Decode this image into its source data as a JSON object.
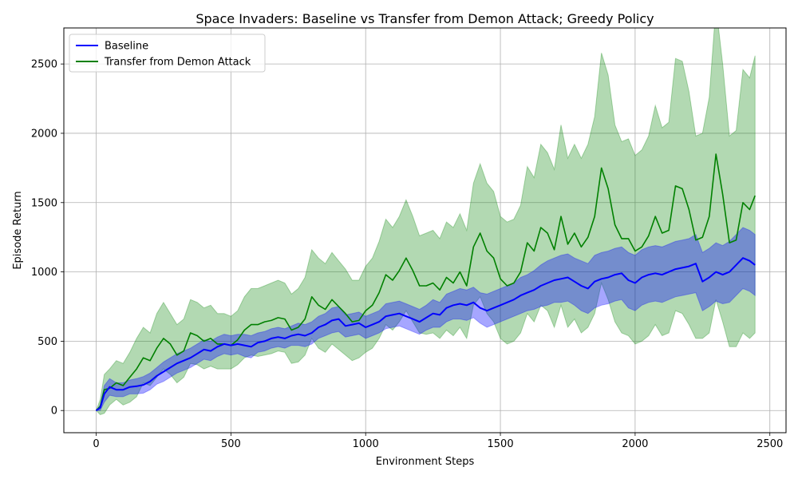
{
  "chart_data": {
    "type": "line",
    "title": "Space Invaders: Baseline vs Transfer from Demon Attack; Greedy Policy",
    "xlabel": "Environment Steps",
    "ylabel": "Episode Return",
    "xlim": [
      -120,
      2560
    ],
    "ylim": [
      -160,
      2760
    ],
    "xticks": [
      0,
      500,
      1000,
      1500,
      2000,
      2500
    ],
    "xtick_labels": [
      "0",
      "500",
      "1000",
      "1500",
      "2000",
      "2500"
    ],
    "yticks": [
      0,
      500,
      1000,
      1500,
      2000,
      2500
    ],
    "ytick_labels": [
      "0",
      "500",
      "1000",
      "1500",
      "2000",
      "2500"
    ],
    "grid": true,
    "legend_position": "top-left",
    "series": [
      {
        "name": "Baseline",
        "color": "#0000ff",
        "band_color": "#0000ff",
        "x": [
          0,
          15,
          30,
          50,
          75,
          100,
          125,
          150,
          175,
          200,
          225,
          250,
          275,
          300,
          325,
          350,
          375,
          400,
          425,
          450,
          475,
          500,
          525,
          550,
          575,
          600,
          625,
          650,
          675,
          700,
          725,
          750,
          775,
          800,
          825,
          850,
          875,
          900,
          925,
          950,
          975,
          1000,
          1025,
          1050,
          1075,
          1100,
          1125,
          1150,
          1175,
          1200,
          1225,
          1250,
          1275,
          1300,
          1325,
          1350,
          1375,
          1400,
          1425,
          1450,
          1475,
          1500,
          1525,
          1550,
          1575,
          1600,
          1625,
          1650,
          1675,
          1700,
          1725,
          1750,
          1775,
          1800,
          1825,
          1850,
          1875,
          1900,
          1925,
          1950,
          1975,
          2000,
          2025,
          2050,
          2075,
          2100,
          2125,
          2150,
          2175,
          2200,
          2225,
          2250,
          2275,
          2300,
          2325,
          2350,
          2375,
          2400,
          2425,
          2445
        ],
        "y": [
          0,
          20,
          120,
          170,
          150,
          150,
          170,
          175,
          185,
          210,
          250,
          280,
          310,
          340,
          360,
          380,
          410,
          440,
          430,
          460,
          480,
          470,
          480,
          470,
          460,
          490,
          500,
          520,
          530,
          520,
          540,
          550,
          540,
          560,
          600,
          620,
          650,
          660,
          610,
          620,
          630,
          600,
          620,
          640,
          680,
          690,
          700,
          680,
          660,
          640,
          670,
          700,
          690,
          740,
          760,
          770,
          760,
          780,
          740,
          720,
          740,
          760,
          780,
          800,
          830,
          850,
          870,
          900,
          920,
          940,
          950,
          960,
          930,
          900,
          880,
          930,
          950,
          960,
          980,
          990,
          940,
          920,
          960,
          980,
          990,
          980,
          1000,
          1020,
          1030,
          1040,
          1060,
          930,
          960,
          1000,
          980,
          1000,
          1050,
          1100,
          1080,
          1050
        ],
        "lower": [
          0,
          0,
          60,
          110,
          100,
          100,
          120,
          120,
          125,
          150,
          190,
          210,
          240,
          270,
          290,
          310,
          340,
          370,
          360,
          390,
          410,
          400,
          410,
          390,
          380,
          420,
          430,
          450,
          460,
          450,
          470,
          470,
          460,
          480,
          520,
          540,
          560,
          570,
          530,
          540,
          550,
          520,
          540,
          560,
          590,
          600,
          610,
          590,
          570,
          550,
          580,
          600,
          600,
          640,
          660,
          660,
          650,
          670,
          630,
          600,
          620,
          640,
          660,
          680,
          700,
          720,
          730,
          750,
          760,
          780,
          780,
          790,
          760,
          720,
          700,
          740,
          760,
          770,
          790,
          800,
          740,
          720,
          760,
          780,
          790,
          780,
          800,
          820,
          830,
          840,
          850,
          720,
          750,
          790,
          770,
          780,
          830,
          880,
          860,
          830
        ],
        "upper": [
          0,
          40,
          180,
          230,
          200,
          200,
          220,
          230,
          245,
          270,
          310,
          350,
          380,
          410,
          430,
          450,
          480,
          510,
          500,
          530,
          550,
          540,
          550,
          550,
          540,
          560,
          570,
          590,
          600,
          590,
          610,
          630,
          620,
          640,
          680,
          700,
          740,
          750,
          690,
          700,
          710,
          680,
          700,
          720,
          770,
          780,
          790,
          770,
          750,
          730,
          760,
          800,
          780,
          840,
          860,
          880,
          870,
          890,
          850,
          840,
          860,
          880,
          900,
          920,
          960,
          980,
          1010,
          1050,
          1080,
          1100,
          1120,
          1130,
          1100,
          1080,
          1060,
          1120,
          1140,
          1150,
          1170,
          1180,
          1140,
          1120,
          1160,
          1180,
          1190,
          1180,
          1200,
          1220,
          1230,
          1240,
          1270,
          1140,
          1170,
          1210,
          1190,
          1220,
          1270,
          1320,
          1300,
          1270
        ]
      },
      {
        "name": "Transfer from Demon Attack",
        "color": "#008000",
        "band_color": "#008000",
        "x": [
          0,
          15,
          30,
          50,
          75,
          100,
          125,
          150,
          175,
          200,
          225,
          250,
          275,
          300,
          325,
          350,
          375,
          400,
          425,
          450,
          475,
          500,
          525,
          550,
          575,
          600,
          625,
          650,
          675,
          700,
          725,
          750,
          775,
          800,
          825,
          850,
          875,
          900,
          925,
          950,
          975,
          1000,
          1025,
          1050,
          1075,
          1100,
          1125,
          1150,
          1175,
          1200,
          1225,
          1250,
          1275,
          1300,
          1325,
          1350,
          1375,
          1400,
          1425,
          1450,
          1475,
          1500,
          1525,
          1550,
          1575,
          1600,
          1625,
          1650,
          1675,
          1700,
          1725,
          1750,
          1775,
          1800,
          1825,
          1850,
          1875,
          1900,
          1925,
          1950,
          1975,
          2000,
          2025,
          2050,
          2075,
          2100,
          2125,
          2150,
          2175,
          2200,
          2225,
          2250,
          2275,
          2300,
          2325,
          2350,
          2375,
          2400,
          2425,
          2445
        ],
        "y": [
          0,
          30,
          150,
          160,
          200,
          180,
          240,
          300,
          380,
          360,
          450,
          520,
          480,
          400,
          430,
          560,
          540,
          500,
          520,
          480,
          480,
          470,
          510,
          580,
          620,
          620,
          640,
          650,
          670,
          660,
          580,
          600,
          660,
          820,
          760,
          730,
          800,
          750,
          700,
          640,
          650,
          720,
          760,
          850,
          980,
          940,
          1010,
          1100,
          1010,
          900,
          900,
          920,
          870,
          960,
          920,
          1000,
          900,
          1180,
          1280,
          1150,
          1100,
          950,
          900,
          920,
          1000,
          1210,
          1150,
          1320,
          1280,
          1160,
          1400,
          1200,
          1280,
          1180,
          1250,
          1400,
          1750,
          1600,
          1340,
          1240,
          1240,
          1150,
          1180,
          1260,
          1400,
          1280,
          1300,
          1620,
          1600,
          1450,
          1230,
          1250,
          1400,
          1850,
          1560,
          1210,
          1230,
          1500,
          1450,
          1550
        ],
        "lower": [
          0,
          -30,
          -20,
          40,
          80,
          40,
          60,
          100,
          200,
          180,
          240,
          300,
          260,
          200,
          240,
          340,
          330,
          300,
          320,
          300,
          300,
          300,
          330,
          380,
          400,
          390,
          400,
          410,
          430,
          420,
          340,
          350,
          400,
          520,
          450,
          420,
          480,
          440,
          400,
          360,
          380,
          420,
          450,
          520,
          620,
          580,
          640,
          720,
          640,
          560,
          550,
          560,
          520,
          580,
          540,
          600,
          520,
          760,
          820,
          700,
          640,
          520,
          480,
          500,
          560,
          700,
          640,
          760,
          720,
          600,
          760,
          600,
          660,
          560,
          600,
          700,
          920,
          800,
          640,
          560,
          540,
          480,
          500,
          540,
          620,
          540,
          560,
          720,
          700,
          620,
          520,
          520,
          560,
          800,
          640,
          460,
          460,
          560,
          520,
          560
        ],
        "upper": [
          0,
          80,
          260,
          300,
          360,
          340,
          420,
          520,
          600,
          560,
          700,
          780,
          700,
          620,
          660,
          800,
          780,
          740,
          760,
          700,
          700,
          680,
          720,
          820,
          880,
          880,
          900,
          920,
          940,
          920,
          840,
          880,
          960,
          1160,
          1100,
          1060,
          1140,
          1080,
          1020,
          940,
          940,
          1040,
          1100,
          1220,
          1380,
          1320,
          1400,
          1520,
          1400,
          1260,
          1280,
          1300,
          1240,
          1360,
          1320,
          1420,
          1300,
          1640,
          1780,
          1640,
          1580,
          1400,
          1360,
          1380,
          1480,
          1760,
          1680,
          1920,
          1860,
          1740,
          2060,
          1820,
          1920,
          1820,
          1920,
          2120,
          2580,
          2420,
          2060,
          1940,
          1960,
          1840,
          1880,
          1980,
          2200,
          2040,
          2080,
          2540,
          2520,
          2300,
          1980,
          2000,
          2260,
          2920,
          2500,
          1980,
          2020,
          2460,
          2400,
          2560
        ]
      }
    ]
  }
}
